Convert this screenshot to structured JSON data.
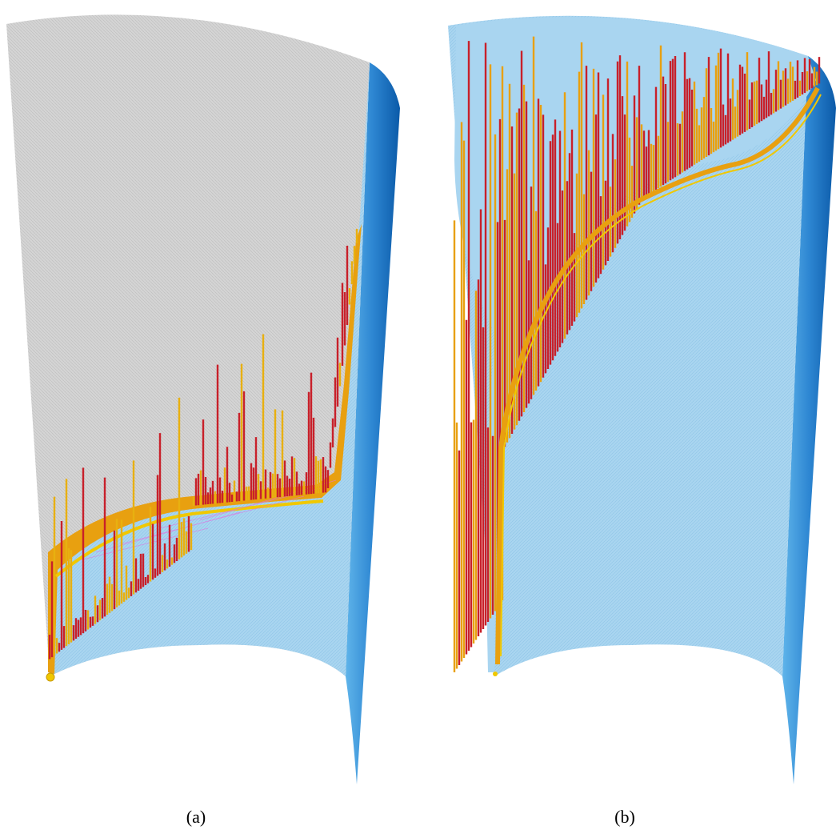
{
  "figure": {
    "panels": [
      {
        "id": "a",
        "caption": "(a)"
      },
      {
        "id": "b",
        "caption": "(b)"
      }
    ],
    "colors": {
      "unfilled_mesh": "#cfcfcf",
      "filled_mesh": "#a8d4ef",
      "outer_surface_light": "#4aa6e4",
      "outer_surface_dark": "#0b62b3",
      "front_yellow": "#f0c800",
      "front_orange": "#e8a010",
      "front_red": "#c8202a",
      "front_magenta": "#e070e0"
    },
    "icons": [
      "cylinder-shell-icon"
    ]
  }
}
